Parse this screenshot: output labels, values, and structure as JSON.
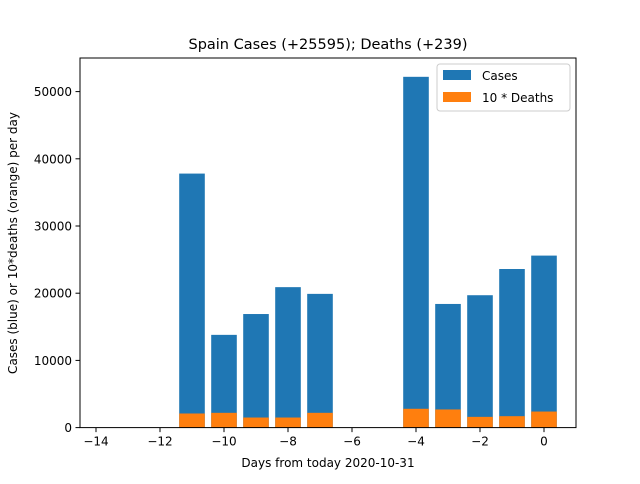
{
  "chart_data": {
    "type": "bar",
    "stacked": "overlay",
    "title": "Spain Cases (+25595); Deaths (+239)",
    "xlabel": "Days from today 2020-10-31",
    "ylabel": "Cases (blue) or 10*deaths (orange) per day",
    "xlim": [
      -14.5,
      1.0
    ],
    "ylim": [
      0,
      55000
    ],
    "xticks": [
      -14,
      -12,
      -10,
      -8,
      -6,
      -4,
      -2,
      0
    ],
    "yticks": [
      0,
      10000,
      20000,
      30000,
      40000,
      50000
    ],
    "grid": false,
    "legend": {
      "position": "top-right"
    },
    "x": [
      -11,
      -10,
      -9,
      -8,
      -7,
      -4,
      -3,
      -2,
      -1,
      0
    ],
    "series": [
      {
        "name": "Cases",
        "color": "#1f77b4",
        "values": [
          37800,
          13800,
          16900,
          20900,
          19900,
          52200,
          18400,
          19700,
          23600,
          25595
        ]
      },
      {
        "name": "10 * Deaths",
        "color": "#ff7f0e",
        "values": [
          2100,
          2200,
          1500,
          1500,
          2200,
          2800,
          2700,
          1600,
          1700,
          2390
        ]
      }
    ]
  }
}
